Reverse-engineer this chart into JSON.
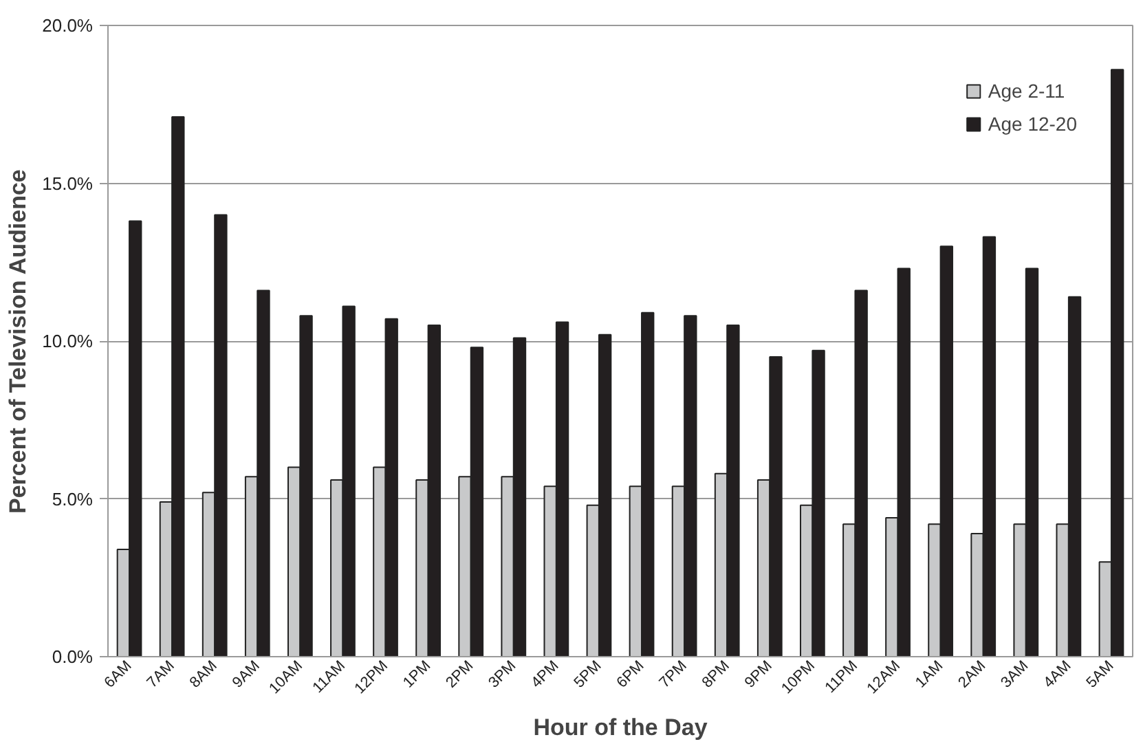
{
  "chart_data": {
    "type": "bar",
    "xlabel": "Hour of the Day",
    "ylabel": "Percent of Television Audience",
    "categories": [
      "6AM",
      "7AM",
      "8AM",
      "9AM",
      "10AM",
      "11AM",
      "12PM",
      "1PM",
      "2PM",
      "3PM",
      "4PM",
      "5PM",
      "6PM",
      "7PM",
      "8PM",
      "9PM",
      "10PM",
      "11PM",
      "12AM",
      "1AM",
      "2AM",
      "3AM",
      "4AM",
      "5AM"
    ],
    "series": [
      {
        "name": "Age 2-11",
        "color": "#c8c9ca",
        "values": [
          3.4,
          4.9,
          5.2,
          5.7,
          6.0,
          5.6,
          6.0,
          5.6,
          5.7,
          5.7,
          5.4,
          4.8,
          5.4,
          5.4,
          5.8,
          5.6,
          4.8,
          4.2,
          4.4,
          4.2,
          3.9,
          4.2,
          4.2,
          3.0
        ]
      },
      {
        "name": "Age 12-20",
        "color": "#231f20",
        "values": [
          13.8,
          17.1,
          14.0,
          11.6,
          10.8,
          11.1,
          10.7,
          10.5,
          9.8,
          10.1,
          10.6,
          10.2,
          10.9,
          10.8,
          10.5,
          9.5,
          9.7,
          11.6,
          12.3,
          13.0,
          13.3,
          12.3,
          11.4,
          18.6
        ]
      }
    ],
    "ylim": [
      0,
      20
    ],
    "yticks": [
      {
        "value": 0,
        "label": "0.0%"
      },
      {
        "value": 5,
        "label": "5.0%"
      },
      {
        "value": 10,
        "label": "10.0%"
      },
      {
        "value": 15,
        "label": "15.0%"
      },
      {
        "value": 20,
        "label": "20.0%"
      }
    ],
    "grid": "y",
    "legend": "top right"
  }
}
